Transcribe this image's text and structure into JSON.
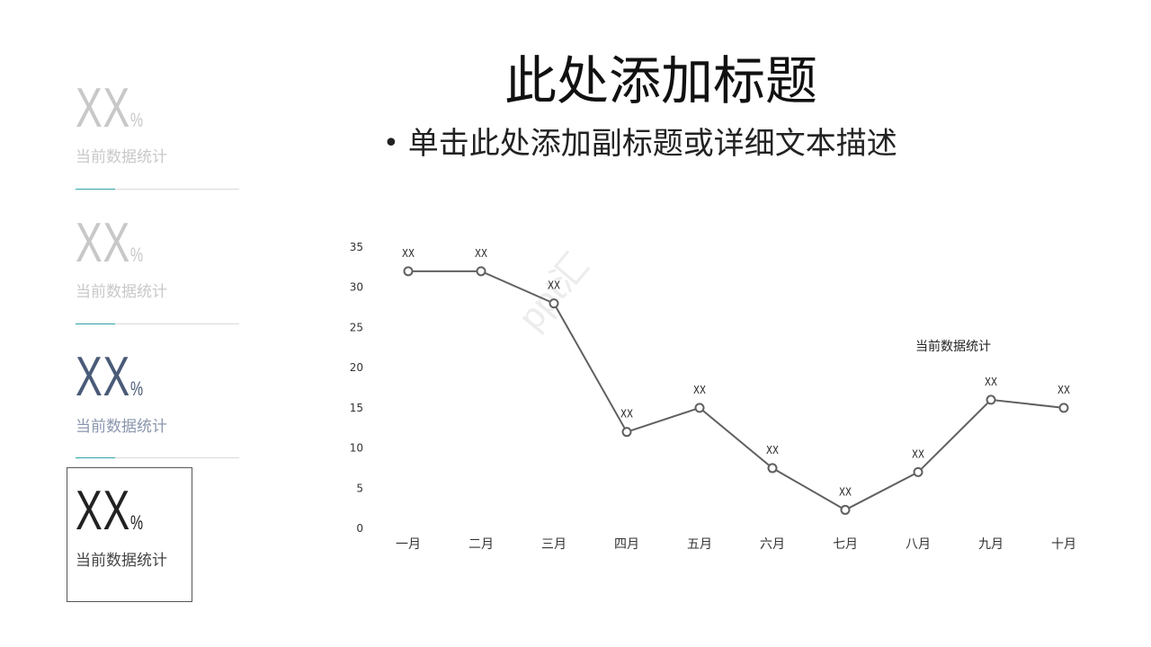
{
  "slide": {
    "title": "此处添加标题",
    "subtitle": "单击此处添加副标题或详细文本描述",
    "bullet": "•"
  },
  "stats": [
    {
      "value": "XX",
      "unit": "%",
      "label": "当前数据统计",
      "color": "#c8c8c8",
      "label_color": "#c8c8c8",
      "accent": "#2fa3a8"
    },
    {
      "value": "XX",
      "unit": "%",
      "label": "当前数据统计",
      "color": "#c8c8c8",
      "label_color": "#c8c8c8",
      "accent": "#2fa3a8"
    },
    {
      "value": "XX",
      "unit": "%",
      "label": "当前数据统计",
      "color": "#4a5b78",
      "label_color": "#8a96ad",
      "accent": "#2fa3a8"
    },
    {
      "value": "XX",
      "unit": "%",
      "label": "当前数据统计",
      "color": "#222222",
      "label_color": "#444444",
      "accent": null
    }
  ],
  "chart_data": {
    "type": "line",
    "categories": [
      "一月",
      "二月",
      "三月",
      "四月",
      "五月",
      "六月",
      "七月",
      "八月",
      "九月",
      "十月"
    ],
    "series": [
      {
        "name": "当前数据统计",
        "values": [
          32,
          32,
          28,
          12,
          15,
          7.5,
          2.3,
          7,
          16,
          15
        ],
        "labels": [
          "XX",
          "XX",
          "XX",
          "XX",
          "XX",
          "XX",
          "XX",
          "XX",
          "XX",
          "XX"
        ],
        "color": "#606060"
      }
    ],
    "ylim": [
      0,
      35
    ],
    "yticks": [
      0,
      5,
      10,
      15,
      20,
      25,
      30,
      35
    ],
    "legend": "当前数据统计",
    "legend_position": "right",
    "grid": false
  },
  "watermark": "ppt汇"
}
